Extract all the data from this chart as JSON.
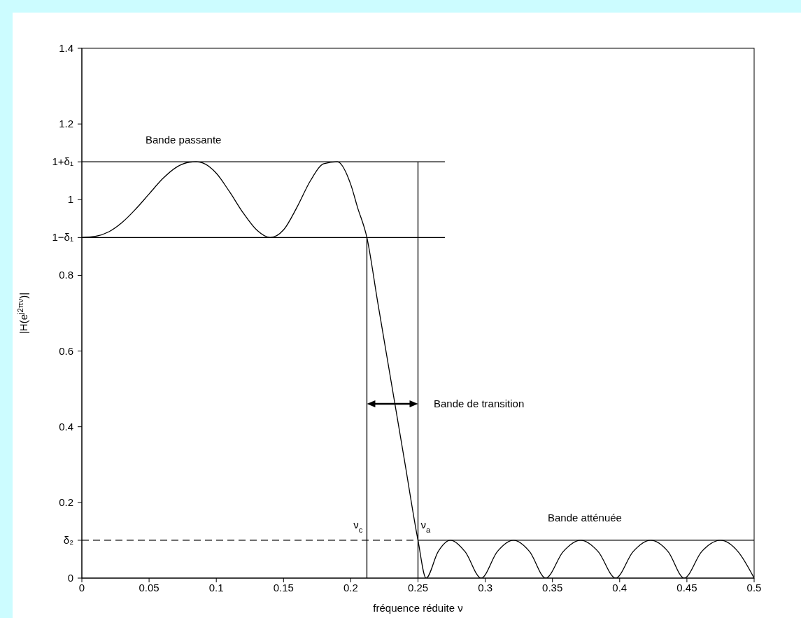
{
  "chart_data": {
    "type": "line",
    "ylabel": "|H(e$^{j2πν}$)|",
    "xlabel": "fréquence réduite ν",
    "xlim": [
      0,
      0.5
    ],
    "xticks": [
      0,
      0.05,
      0.1,
      0.15,
      0.2,
      0.25,
      0.3,
      0.35,
      0.4,
      0.45,
      0.5
    ],
    "ylim": [
      0,
      1.4
    ],
    "yticks": [
      0,
      {
        "value": 0.1,
        "label": "δ₂"
      },
      0.2,
      0.4,
      0.6,
      0.8,
      {
        "value": 0.9,
        "label": "1−δ₁"
      },
      1,
      {
        "value": 1.1,
        "label": "1+δ₁"
      },
      1.2,
      1.4
    ],
    "grid": false,
    "marker": "none",
    "series": [
      {
        "color": "#000000",
        "line_style": "solid",
        "x": [
          0,
          0.01,
          0.02,
          0.03,
          0.04,
          0.05,
          0.06,
          0.07,
          0.08,
          0.085,
          0.09,
          0.1,
          0.11,
          0.12,
          0.13,
          0.14,
          0.15,
          0.16,
          0.17,
          0.18,
          0.19,
          0.2,
          0.205,
          0.212,
          0.22,
          0.23,
          0.24,
          0.25,
          0.256,
          0.265,
          0.274,
          0.285,
          0.297,
          0.309,
          0.321,
          0.333,
          0.345,
          0.358,
          0.371,
          0.384,
          0.397,
          0.41,
          0.423,
          0.436,
          0.448,
          0.461,
          0.475,
          0.488,
          0.5
        ],
        "values": [
          0.9,
          0.903,
          0.915,
          0.94,
          0.975,
          1.015,
          1.055,
          1.085,
          1.099,
          1.1,
          1.097,
          1.07,
          1.02,
          0.965,
          0.92,
          0.9,
          0.92,
          0.98,
          1.05,
          1.095,
          1.1,
          1.04,
          0.98,
          0.9,
          0.73,
          0.52,
          0.31,
          0.1,
          0,
          0.07,
          0.1,
          0.07,
          0,
          0.07,
          0.1,
          0.07,
          0,
          0.07,
          0.1,
          0.07,
          0,
          0.07,
          0.1,
          0.07,
          0,
          0.07,
          0.1,
          0.07,
          0
        ]
      },
      {
        "color": "#000000",
        "line_style": "solid",
        "x": [
          0,
          0.27
        ],
        "values": [
          1.1,
          1.1
        ]
      },
      {
        "color": "#000000",
        "line_style": "solid",
        "x": [
          0,
          0.27
        ],
        "values": [
          0.9,
          0.9
        ]
      },
      {
        "color": "#000000",
        "line_style": "solid",
        "x": [
          0.212,
          0.212
        ],
        "values": [
          0,
          0.9
        ]
      },
      {
        "color": "#000000",
        "line_style": "solid",
        "x": [
          0.25,
          0.25
        ],
        "values": [
          0,
          1.1
        ]
      },
      {
        "color": "#000000",
        "line_style": "dashed",
        "x": [
          0,
          0.25
        ],
        "values": [
          0.1,
          0.1
        ]
      },
      {
        "color": "#000000",
        "line_style": "solid",
        "x": [
          0.25,
          0.5
        ],
        "values": [
          0.1,
          0.1
        ]
      }
    ],
    "annotations": [
      "Bande passante",
      "Bande atténuée",
      "Bande de transition",
      {
        "text": "ν$_{c}$",
        "x": 0.212,
        "y": 0.1
      },
      {
        "text": "ν$_{a}$",
        "x": 0.25,
        "y": 0.1
      }
    ]
  }
}
